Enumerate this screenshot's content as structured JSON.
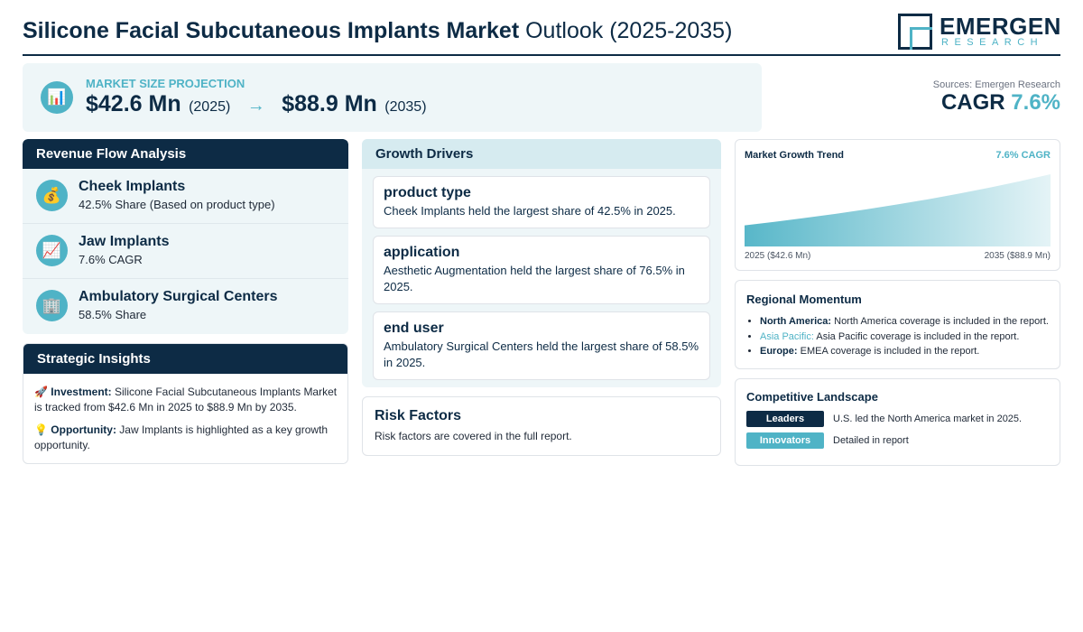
{
  "header": {
    "title_bold": "Silicone Facial Subcutaneous Implants Market",
    "title_rest": " Outlook (2025-2035)",
    "logo_word": "EMERGEN",
    "logo_sub": "RESEARCH"
  },
  "projection": {
    "icon": "bar-chart-icon",
    "label": "MARKET SIZE PROJECTION",
    "start_value": "$42.6 Mn",
    "start_year": "(2025)",
    "arrow": "→",
    "end_value": "$88.9 Mn",
    "end_year": "(2035)"
  },
  "summary": {
    "sources": "Sources: Emergen Research",
    "cagr_label": "CAGR",
    "cagr_value": "7.6%"
  },
  "revenue": {
    "heading": "Revenue Flow Analysis",
    "items": [
      {
        "icon": "money-bag-icon",
        "glyph": "💰",
        "title": "Cheek Implants",
        "sub": "42.5% Share (Based on product type)"
      },
      {
        "icon": "trend-up-icon",
        "glyph": "📈",
        "title": "Jaw Implants",
        "sub": "7.6% CAGR"
      },
      {
        "icon": "building-icon",
        "glyph": "🏢",
        "title": "Ambulatory Surgical Centers",
        "sub": "58.5% Share"
      }
    ]
  },
  "strategic": {
    "heading": "Strategic Insights",
    "investment_glyph": "🚀",
    "investment_label": "Investment:",
    "investment_text": " Silicone Facial Subcutaneous Implants Market is tracked from $42.6 Mn in 2025 to $88.9 Mn by 2035.",
    "opportunity_glyph": "💡",
    "opportunity_label": "Opportunity:",
    "opportunity_text": " Jaw Implants is highlighted as a key growth opportunity."
  },
  "drivers": {
    "heading": "Growth Drivers",
    "cards": [
      {
        "title": "product type",
        "text": "Cheek Implants held the largest share of 42.5% in 2025."
      },
      {
        "title": "application",
        "text": "Aesthetic Augmentation held the largest share of 76.5% in 2025."
      },
      {
        "title": "end user",
        "text": "Ambulatory Surgical Centers held the largest share of 58.5% in 2025."
      }
    ]
  },
  "risk": {
    "heading": "Risk Factors",
    "text": "Risk factors are covered in the full report."
  },
  "trend": {
    "heading": "Market Growth Trend",
    "cagr": "7.6% CAGR",
    "start_label": "2025 ($42.6 Mn)",
    "end_label": "2035 ($88.9 Mn)"
  },
  "regional": {
    "heading": "Regional Momentum",
    "items": [
      {
        "region": "North America:",
        "text": " North America coverage is included in the report."
      },
      {
        "region": "Asia Pacific:",
        "text": " Asia Pacific coverage is included in the report."
      },
      {
        "region": "Europe:",
        "text": " EMEA coverage is included in the report."
      }
    ]
  },
  "competitive": {
    "heading": "Competitive Landscape",
    "rows": [
      {
        "badge": "Leaders",
        "text": "U.S. led the North America market in 2025."
      },
      {
        "badge": "Innovators",
        "text": "Detailed in report"
      }
    ]
  },
  "chart_data": {
    "type": "area",
    "x": [
      2025,
      2035
    ],
    "values": [
      42.6,
      88.9
    ],
    "title": "Market Growth Trend",
    "xlabel": "",
    "ylabel": "",
    "grid": false
  },
  "colors": {
    "navy": "#0d2b45",
    "teal": "#4fb3c6",
    "panel_bg": "#eef6f8"
  }
}
